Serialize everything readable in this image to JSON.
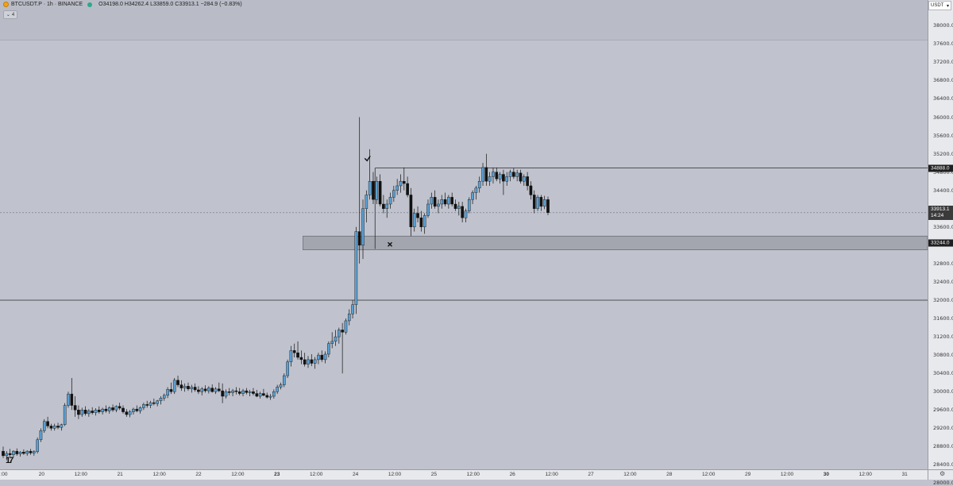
{
  "legend": {
    "symbol": "BTCUSDT.P · 1h · BINANCE",
    "ohlc": "O34198.0 H34262.4 L33859.0 C33913.1 −284.9 (−0.83%)",
    "collapse_label": "4",
    "status_color": "#2ea88a",
    "coin_color": "#f3a21f"
  },
  "currency_button": {
    "label": "USDT",
    "icon": "chevron-down-icon"
  },
  "price_labels": {
    "level_high": "34888.0",
    "level_low": "33244.0",
    "current_price": "33913.1",
    "countdown": "14:24"
  },
  "price_ticks": [
    "38000.0",
    "37600.0",
    "37200.0",
    "36800.0",
    "36400.0",
    "36000.0",
    "35600.0",
    "35200.0",
    "34800.0",
    "34400.0",
    "34000.0",
    "33600.0",
    "32800.0",
    "32400.0",
    "32000.0",
    "31600.0",
    "31200.0",
    "30800.0",
    "30400.0",
    "30000.0",
    "29600.0",
    "29200.0",
    "28800.0",
    "28400.0",
    "28000.0"
  ],
  "time_ticks": [
    ":00",
    "20",
    "12:00",
    "21",
    "12:00",
    "22",
    "12:00",
    "23",
    "12:00",
    "24",
    "12:00",
    "25",
    "12:00",
    "26",
    "12:00",
    "27",
    "12:00",
    "28",
    "12:00",
    "29",
    "12:00",
    "30",
    "12:00",
    "31"
  ],
  "chart_data": {
    "type": "candlestick",
    "symbol": "BTCUSDT.P",
    "timeframe": "1h",
    "exchange": "BINANCE",
    "x_range": [
      "19 12:00",
      "31 12:00"
    ],
    "ylim": [
      27800,
      38300
    ],
    "horizontal_lines": [
      34888,
      32000
    ],
    "zone": {
      "from": 33100,
      "to": 33400,
      "start": "23 08:00"
    },
    "markers": [
      {
        "type": "check",
        "price": 35100,
        "time": "24 06:00"
      },
      {
        "type": "cross",
        "price": 33220,
        "time": "24 12:00"
      }
    ],
    "current_price": 33913.1,
    "colors": {
      "up": "#5b9fd1",
      "down": "#111111",
      "background": "#c0c3cd"
    },
    "candles": [
      {
        "i": 0,
        "o": 28700,
        "h": 28800,
        "l": 28550,
        "c": 28600
      },
      {
        "i": 1,
        "o": 28600,
        "h": 28700,
        "l": 28500,
        "c": 28650
      },
      {
        "i": 2,
        "o": 28650,
        "h": 28750,
        "l": 28580,
        "c": 28620
      },
      {
        "i": 3,
        "o": 28620,
        "h": 28720,
        "l": 28560,
        "c": 28700
      },
      {
        "i": 4,
        "o": 28700,
        "h": 28760,
        "l": 28600,
        "c": 28640
      },
      {
        "i": 5,
        "o": 28640,
        "h": 28700,
        "l": 28580,
        "c": 28680
      },
      {
        "i": 6,
        "o": 28680,
        "h": 28740,
        "l": 28620,
        "c": 28650
      },
      {
        "i": 7,
        "o": 28650,
        "h": 28720,
        "l": 28600,
        "c": 28700
      },
      {
        "i": 8,
        "o": 28700,
        "h": 28750,
        "l": 28620,
        "c": 28660
      },
      {
        "i": 9,
        "o": 28660,
        "h": 28720,
        "l": 28600,
        "c": 28690
      },
      {
        "i": 10,
        "o": 28690,
        "h": 29000,
        "l": 28650,
        "c": 28950
      },
      {
        "i": 11,
        "o": 28950,
        "h": 29200,
        "l": 28900,
        "c": 29150
      },
      {
        "i": 12,
        "o": 29150,
        "h": 29400,
        "l": 29100,
        "c": 29350
      },
      {
        "i": 13,
        "o": 29350,
        "h": 29450,
        "l": 29200,
        "c": 29250
      },
      {
        "i": 14,
        "o": 29250,
        "h": 29300,
        "l": 29150,
        "c": 29200
      },
      {
        "i": 15,
        "o": 29200,
        "h": 29300,
        "l": 29150,
        "c": 29250
      },
      {
        "i": 16,
        "o": 29250,
        "h": 29320,
        "l": 29180,
        "c": 29220
      },
      {
        "i": 17,
        "o": 29220,
        "h": 29300,
        "l": 29150,
        "c": 29280
      },
      {
        "i": 18,
        "o": 29280,
        "h": 29750,
        "l": 29250,
        "c": 29700
      },
      {
        "i": 19,
        "o": 29700,
        "h": 30000,
        "l": 29650,
        "c": 29950
      },
      {
        "i": 20,
        "o": 29950,
        "h": 30300,
        "l": 29600,
        "c": 29700
      },
      {
        "i": 21,
        "o": 29700,
        "h": 29900,
        "l": 29450,
        "c": 29600
      },
      {
        "i": 22,
        "o": 29600,
        "h": 29700,
        "l": 29400,
        "c": 29500
      },
      {
        "i": 23,
        "o": 29500,
        "h": 29650,
        "l": 29450,
        "c": 29600
      },
      {
        "i": 24,
        "o": 29600,
        "h": 29680,
        "l": 29480,
        "c": 29520
      },
      {
        "i": 25,
        "o": 29520,
        "h": 29620,
        "l": 29450,
        "c": 29580
      },
      {
        "i": 26,
        "o": 29580,
        "h": 29660,
        "l": 29500,
        "c": 29540
      },
      {
        "i": 27,
        "o": 29540,
        "h": 29640,
        "l": 29480,
        "c": 29600
      },
      {
        "i": 28,
        "o": 29600,
        "h": 29680,
        "l": 29520,
        "c": 29560
      },
      {
        "i": 29,
        "o": 29560,
        "h": 29650,
        "l": 29500,
        "c": 29620
      },
      {
        "i": 30,
        "o": 29620,
        "h": 29700,
        "l": 29540,
        "c": 29580
      },
      {
        "i": 31,
        "o": 29580,
        "h": 29680,
        "l": 29520,
        "c": 29650
      },
      {
        "i": 32,
        "o": 29650,
        "h": 29720,
        "l": 29560,
        "c": 29600
      },
      {
        "i": 33,
        "o": 29600,
        "h": 29700,
        "l": 29550,
        "c": 29680
      },
      {
        "i": 34,
        "o": 29680,
        "h": 29760,
        "l": 29600,
        "c": 29640
      },
      {
        "i": 35,
        "o": 29640,
        "h": 29700,
        "l": 29520,
        "c": 29560
      },
      {
        "i": 36,
        "o": 29560,
        "h": 29620,
        "l": 29450,
        "c": 29500
      },
      {
        "i": 37,
        "o": 29500,
        "h": 29600,
        "l": 29440,
        "c": 29560
      },
      {
        "i": 38,
        "o": 29560,
        "h": 29650,
        "l": 29500,
        "c": 29620
      },
      {
        "i": 39,
        "o": 29620,
        "h": 29700,
        "l": 29550,
        "c": 29580
      },
      {
        "i": 40,
        "o": 29580,
        "h": 29680,
        "l": 29520,
        "c": 29650
      },
      {
        "i": 41,
        "o": 29650,
        "h": 29760,
        "l": 29600,
        "c": 29720
      },
      {
        "i": 42,
        "o": 29720,
        "h": 29800,
        "l": 29650,
        "c": 29700
      },
      {
        "i": 43,
        "o": 29700,
        "h": 29800,
        "l": 29640,
        "c": 29760
      },
      {
        "i": 44,
        "o": 29760,
        "h": 29850,
        "l": 29700,
        "c": 29740
      },
      {
        "i": 45,
        "o": 29740,
        "h": 29820,
        "l": 29680,
        "c": 29800
      },
      {
        "i": 46,
        "o": 29800,
        "h": 29900,
        "l": 29720,
        "c": 29860
      },
      {
        "i": 47,
        "o": 29860,
        "h": 29960,
        "l": 29800,
        "c": 29920
      },
      {
        "i": 48,
        "o": 29920,
        "h": 30100,
        "l": 29860,
        "c": 30050
      },
      {
        "i": 49,
        "o": 30050,
        "h": 30200,
        "l": 29950,
        "c": 30000
      },
      {
        "i": 50,
        "o": 30000,
        "h": 30300,
        "l": 29950,
        "c": 30250
      },
      {
        "i": 51,
        "o": 30250,
        "h": 30350,
        "l": 30100,
        "c": 30150
      },
      {
        "i": 52,
        "o": 30150,
        "h": 30250,
        "l": 30020,
        "c": 30080
      },
      {
        "i": 53,
        "o": 30080,
        "h": 30180,
        "l": 30000,
        "c": 30120
      },
      {
        "i": 54,
        "o": 30120,
        "h": 30200,
        "l": 30020,
        "c": 30060
      },
      {
        "i": 55,
        "o": 30060,
        "h": 30150,
        "l": 29980,
        "c": 30100
      },
      {
        "i": 56,
        "o": 30100,
        "h": 30180,
        "l": 30000,
        "c": 30040
      },
      {
        "i": 57,
        "o": 30040,
        "h": 30120,
        "l": 29950,
        "c": 30000
      },
      {
        "i": 58,
        "o": 30000,
        "h": 30100,
        "l": 29920,
        "c": 30060
      },
      {
        "i": 59,
        "o": 30060,
        "h": 30140,
        "l": 29980,
        "c": 30020
      },
      {
        "i": 60,
        "o": 30020,
        "h": 30120,
        "l": 29960,
        "c": 30080
      },
      {
        "i": 61,
        "o": 30080,
        "h": 30160,
        "l": 29980,
        "c": 30000
      },
      {
        "i": 62,
        "o": 30000,
        "h": 30100,
        "l": 29950,
        "c": 30060
      },
      {
        "i": 63,
        "o": 30060,
        "h": 30200,
        "l": 29990,
        "c": 30020
      },
      {
        "i": 64,
        "o": 30020,
        "h": 30180,
        "l": 29750,
        "c": 29900
      },
      {
        "i": 65,
        "o": 29900,
        "h": 30050,
        "l": 29850,
        "c": 30000
      },
      {
        "i": 66,
        "o": 30000,
        "h": 30080,
        "l": 29920,
        "c": 29980
      },
      {
        "i": 67,
        "o": 29980,
        "h": 30060,
        "l": 29900,
        "c": 30020
      },
      {
        "i": 68,
        "o": 30020,
        "h": 30100,
        "l": 29940,
        "c": 30000
      },
      {
        "i": 69,
        "o": 30000,
        "h": 30080,
        "l": 29920,
        "c": 29960
      },
      {
        "i": 70,
        "o": 29960,
        "h": 30060,
        "l": 29900,
        "c": 30020
      },
      {
        "i": 71,
        "o": 30020,
        "h": 30080,
        "l": 29940,
        "c": 29980
      },
      {
        "i": 72,
        "o": 29980,
        "h": 30040,
        "l": 29900,
        "c": 30000
      },
      {
        "i": 73,
        "o": 30000,
        "h": 30080,
        "l": 29920,
        "c": 29960
      },
      {
        "i": 74,
        "o": 29960,
        "h": 30040,
        "l": 29880,
        "c": 29900
      },
      {
        "i": 75,
        "o": 29900,
        "h": 30000,
        "l": 29850,
        "c": 29960
      },
      {
        "i": 76,
        "o": 29960,
        "h": 30060,
        "l": 29900,
        "c": 29920
      },
      {
        "i": 77,
        "o": 29920,
        "h": 29980,
        "l": 29850,
        "c": 29880
      },
      {
        "i": 78,
        "o": 29880,
        "h": 29950,
        "l": 29820,
        "c": 29900
      },
      {
        "i": 79,
        "o": 29900,
        "h": 30050,
        "l": 29850,
        "c": 30000
      },
      {
        "i": 80,
        "o": 30000,
        "h": 30150,
        "l": 29950,
        "c": 30100
      },
      {
        "i": 81,
        "o": 30100,
        "h": 30200,
        "l": 30050,
        "c": 30150
      },
      {
        "i": 82,
        "o": 30150,
        "h": 30400,
        "l": 30100,
        "c": 30350
      },
      {
        "i": 83,
        "o": 30350,
        "h": 30700,
        "l": 30300,
        "c": 30650
      },
      {
        "i": 84,
        "o": 30650,
        "h": 31000,
        "l": 30550,
        "c": 30900
      },
      {
        "i": 85,
        "o": 30900,
        "h": 31050,
        "l": 30750,
        "c": 30850
      },
      {
        "i": 86,
        "o": 30850,
        "h": 31100,
        "l": 30700,
        "c": 30750
      },
      {
        "i": 87,
        "o": 30750,
        "h": 30900,
        "l": 30600,
        "c": 30700
      },
      {
        "i": 88,
        "o": 30700,
        "h": 30850,
        "l": 30550,
        "c": 30600
      },
      {
        "i": 89,
        "o": 30600,
        "h": 30780,
        "l": 30520,
        "c": 30700
      },
      {
        "i": 90,
        "o": 30700,
        "h": 30820,
        "l": 30560,
        "c": 30620
      },
      {
        "i": 91,
        "o": 30620,
        "h": 30760,
        "l": 30500,
        "c": 30700
      },
      {
        "i": 92,
        "o": 30700,
        "h": 30850,
        "l": 30600,
        "c": 30800
      },
      {
        "i": 93,
        "o": 30800,
        "h": 30900,
        "l": 30650,
        "c": 30700
      },
      {
        "i": 94,
        "o": 30700,
        "h": 30880,
        "l": 30620,
        "c": 30820
      },
      {
        "i": 95,
        "o": 30820,
        "h": 31100,
        "l": 30750,
        "c": 31050
      },
      {
        "i": 96,
        "o": 31050,
        "h": 31300,
        "l": 30950,
        "c": 31100
      },
      {
        "i": 97,
        "o": 31100,
        "h": 31350,
        "l": 31000,
        "c": 31200
      },
      {
        "i": 98,
        "o": 31200,
        "h": 31400,
        "l": 31050,
        "c": 31350
      },
      {
        "i": 99,
        "o": 31350,
        "h": 31500,
        "l": 30400,
        "c": 31300
      },
      {
        "i": 100,
        "o": 31300,
        "h": 31600,
        "l": 31250,
        "c": 31550
      },
      {
        "i": 101,
        "o": 31550,
        "h": 31800,
        "l": 31450,
        "c": 31700
      },
      {
        "i": 102,
        "o": 31700,
        "h": 32000,
        "l": 31600,
        "c": 31900
      },
      {
        "i": 103,
        "o": 31900,
        "h": 33600,
        "l": 31700,
        "c": 33500
      },
      {
        "i": 104,
        "o": 33500,
        "h": 36000,
        "l": 32800,
        "c": 33200
      },
      {
        "i": 105,
        "o": 33200,
        "h": 34200,
        "l": 32900,
        "c": 34000
      },
      {
        "i": 106,
        "o": 34000,
        "h": 34400,
        "l": 33700,
        "c": 34300
      },
      {
        "i": 107,
        "o": 34300,
        "h": 35300,
        "l": 34200,
        "c": 34600
      },
      {
        "i": 108,
        "o": 34600,
        "h": 34800,
        "l": 34100,
        "c": 34200
      },
      {
        "i": 109,
        "o": 34200,
        "h": 34700,
        "l": 34100,
        "c": 34600
      },
      {
        "i": 110,
        "o": 34600,
        "h": 34750,
        "l": 34050,
        "c": 34100
      },
      {
        "i": 111,
        "o": 34100,
        "h": 34300,
        "l": 33900,
        "c": 34000
      },
      {
        "i": 112,
        "o": 34000,
        "h": 34200,
        "l": 33800,
        "c": 34100
      },
      {
        "i": 113,
        "o": 34100,
        "h": 34350,
        "l": 34000,
        "c": 34250
      },
      {
        "i": 114,
        "o": 34250,
        "h": 34500,
        "l": 34150,
        "c": 34400
      },
      {
        "i": 115,
        "o": 34400,
        "h": 34650,
        "l": 34300,
        "c": 34500
      },
      {
        "i": 116,
        "o": 34500,
        "h": 34750,
        "l": 34350,
        "c": 34600
      },
      {
        "i": 117,
        "o": 34600,
        "h": 34900,
        "l": 34400,
        "c": 34550
      },
      {
        "i": 118,
        "o": 34550,
        "h": 34700,
        "l": 34250,
        "c": 34300
      },
      {
        "i": 119,
        "o": 34300,
        "h": 34450,
        "l": 33400,
        "c": 33600
      },
      {
        "i": 120,
        "o": 33600,
        "h": 34000,
        "l": 33500,
        "c": 33900
      },
      {
        "i": 121,
        "o": 33900,
        "h": 34050,
        "l": 33700,
        "c": 33800
      },
      {
        "i": 122,
        "o": 33800,
        "h": 33950,
        "l": 33500,
        "c": 33600
      },
      {
        "i": 123,
        "o": 33600,
        "h": 33900,
        "l": 33450,
        "c": 33850
      },
      {
        "i": 124,
        "o": 33850,
        "h": 34200,
        "l": 33800,
        "c": 34100
      },
      {
        "i": 125,
        "o": 34100,
        "h": 34350,
        "l": 34000,
        "c": 34250
      },
      {
        "i": 126,
        "o": 34250,
        "h": 34400,
        "l": 34000,
        "c": 34050
      },
      {
        "i": 127,
        "o": 34050,
        "h": 34200,
        "l": 33900,
        "c": 34100
      },
      {
        "i": 128,
        "o": 34100,
        "h": 34300,
        "l": 34000,
        "c": 34200
      },
      {
        "i": 129,
        "o": 34200,
        "h": 34350,
        "l": 34050,
        "c": 34100
      },
      {
        "i": 130,
        "o": 34100,
        "h": 34300,
        "l": 34000,
        "c": 34250
      },
      {
        "i": 131,
        "o": 34250,
        "h": 34350,
        "l": 34050,
        "c": 34100
      },
      {
        "i": 132,
        "o": 34100,
        "h": 34200,
        "l": 33950,
        "c": 34000
      },
      {
        "i": 133,
        "o": 34000,
        "h": 34150,
        "l": 33850,
        "c": 34050
      },
      {
        "i": 134,
        "o": 34050,
        "h": 34150,
        "l": 33700,
        "c": 33800
      },
      {
        "i": 135,
        "o": 33800,
        "h": 34000,
        "l": 33700,
        "c": 33950
      },
      {
        "i": 136,
        "o": 33950,
        "h": 34250,
        "l": 33900,
        "c": 34200
      },
      {
        "i": 137,
        "o": 34200,
        "h": 34400,
        "l": 34100,
        "c": 34350
      },
      {
        "i": 138,
        "o": 34350,
        "h": 34500,
        "l": 34200,
        "c": 34450
      },
      {
        "i": 139,
        "o": 34450,
        "h": 34700,
        "l": 34350,
        "c": 34600
      },
      {
        "i": 140,
        "o": 34600,
        "h": 35000,
        "l": 34500,
        "c": 34900
      },
      {
        "i": 141,
        "o": 34900,
        "h": 35200,
        "l": 34500,
        "c": 34600
      },
      {
        "i": 142,
        "o": 34600,
        "h": 34800,
        "l": 34500,
        "c": 34700
      },
      {
        "i": 143,
        "o": 34700,
        "h": 34900,
        "l": 34550,
        "c": 34800
      },
      {
        "i": 144,
        "o": 34800,
        "h": 34900,
        "l": 34600,
        "c": 34650
      },
      {
        "i": 145,
        "o": 34650,
        "h": 34800,
        "l": 34550,
        "c": 34750
      },
      {
        "i": 146,
        "o": 34750,
        "h": 34850,
        "l": 34300,
        "c": 34600
      },
      {
        "i": 147,
        "o": 34600,
        "h": 34800,
        "l": 34500,
        "c": 34700
      },
      {
        "i": 148,
        "o": 34700,
        "h": 34850,
        "l": 34600,
        "c": 34800
      },
      {
        "i": 149,
        "o": 34800,
        "h": 34880,
        "l": 34650,
        "c": 34700
      },
      {
        "i": 150,
        "o": 34700,
        "h": 34850,
        "l": 34600,
        "c": 34780
      },
      {
        "i": 151,
        "o": 34780,
        "h": 34850,
        "l": 34550,
        "c": 34600
      },
      {
        "i": 152,
        "o": 34600,
        "h": 34750,
        "l": 34500,
        "c": 34700
      },
      {
        "i": 153,
        "o": 34700,
        "h": 34800,
        "l": 34400,
        "c": 34500
      },
      {
        "i": 154,
        "o": 34500,
        "h": 34600,
        "l": 34200,
        "c": 34300
      },
      {
        "i": 155,
        "o": 34300,
        "h": 34400,
        "l": 33900,
        "c": 34000
      },
      {
        "i": 156,
        "o": 34000,
        "h": 34300,
        "l": 33950,
        "c": 34250
      },
      {
        "i": 157,
        "o": 34250,
        "h": 34300,
        "l": 33950,
        "c": 34050
      },
      {
        "i": 158,
        "o": 34050,
        "h": 34280,
        "l": 33990,
        "c": 34200
      },
      {
        "i": 159,
        "o": 34198,
        "h": 34262,
        "l": 33859,
        "c": 33913
      }
    ]
  }
}
